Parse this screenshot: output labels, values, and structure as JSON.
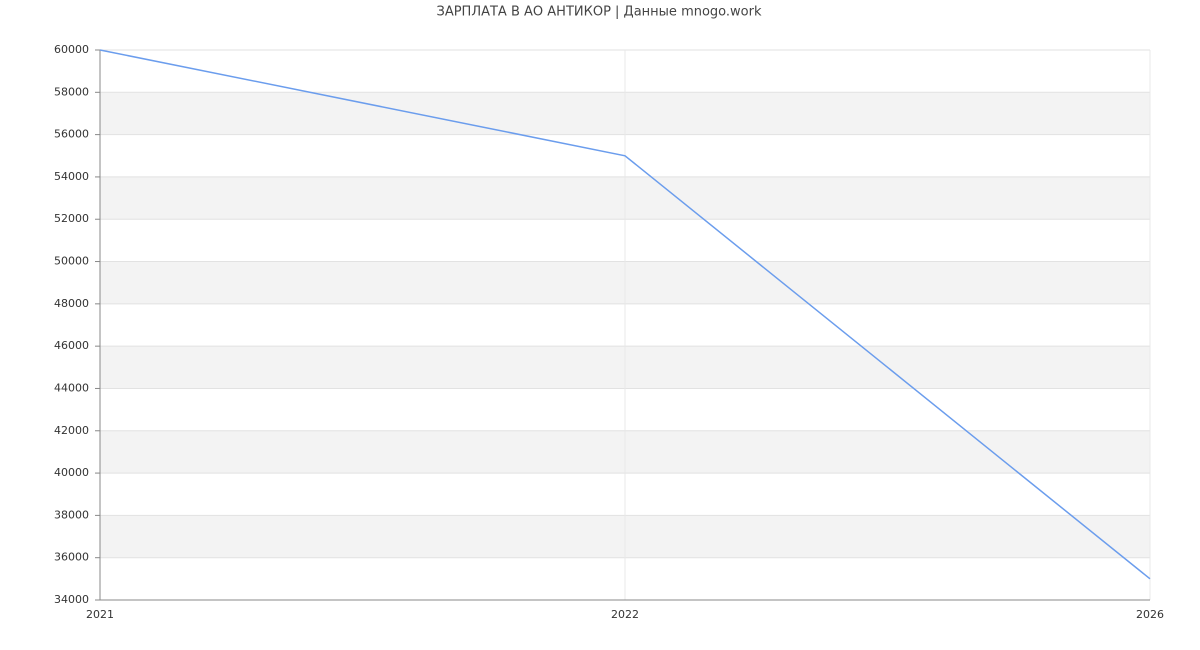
{
  "chart_data": {
    "type": "line",
    "title": "ЗАРПЛАТА В АО АНТИКОР | Данные mnogo.work",
    "categories": [
      "2021",
      "2022",
      "2026"
    ],
    "series": [
      {
        "color": "#6b9ded",
        "values": [
          60000,
          55000,
          35000
        ]
      }
    ],
    "ylim": [
      34000,
      60000
    ],
    "yticks": [
      34000,
      36000,
      38000,
      40000,
      42000,
      44000,
      46000,
      48000,
      50000,
      52000,
      54000,
      56000,
      58000,
      60000
    ],
    "grid": true,
    "band_color": "#f3f3f3"
  }
}
